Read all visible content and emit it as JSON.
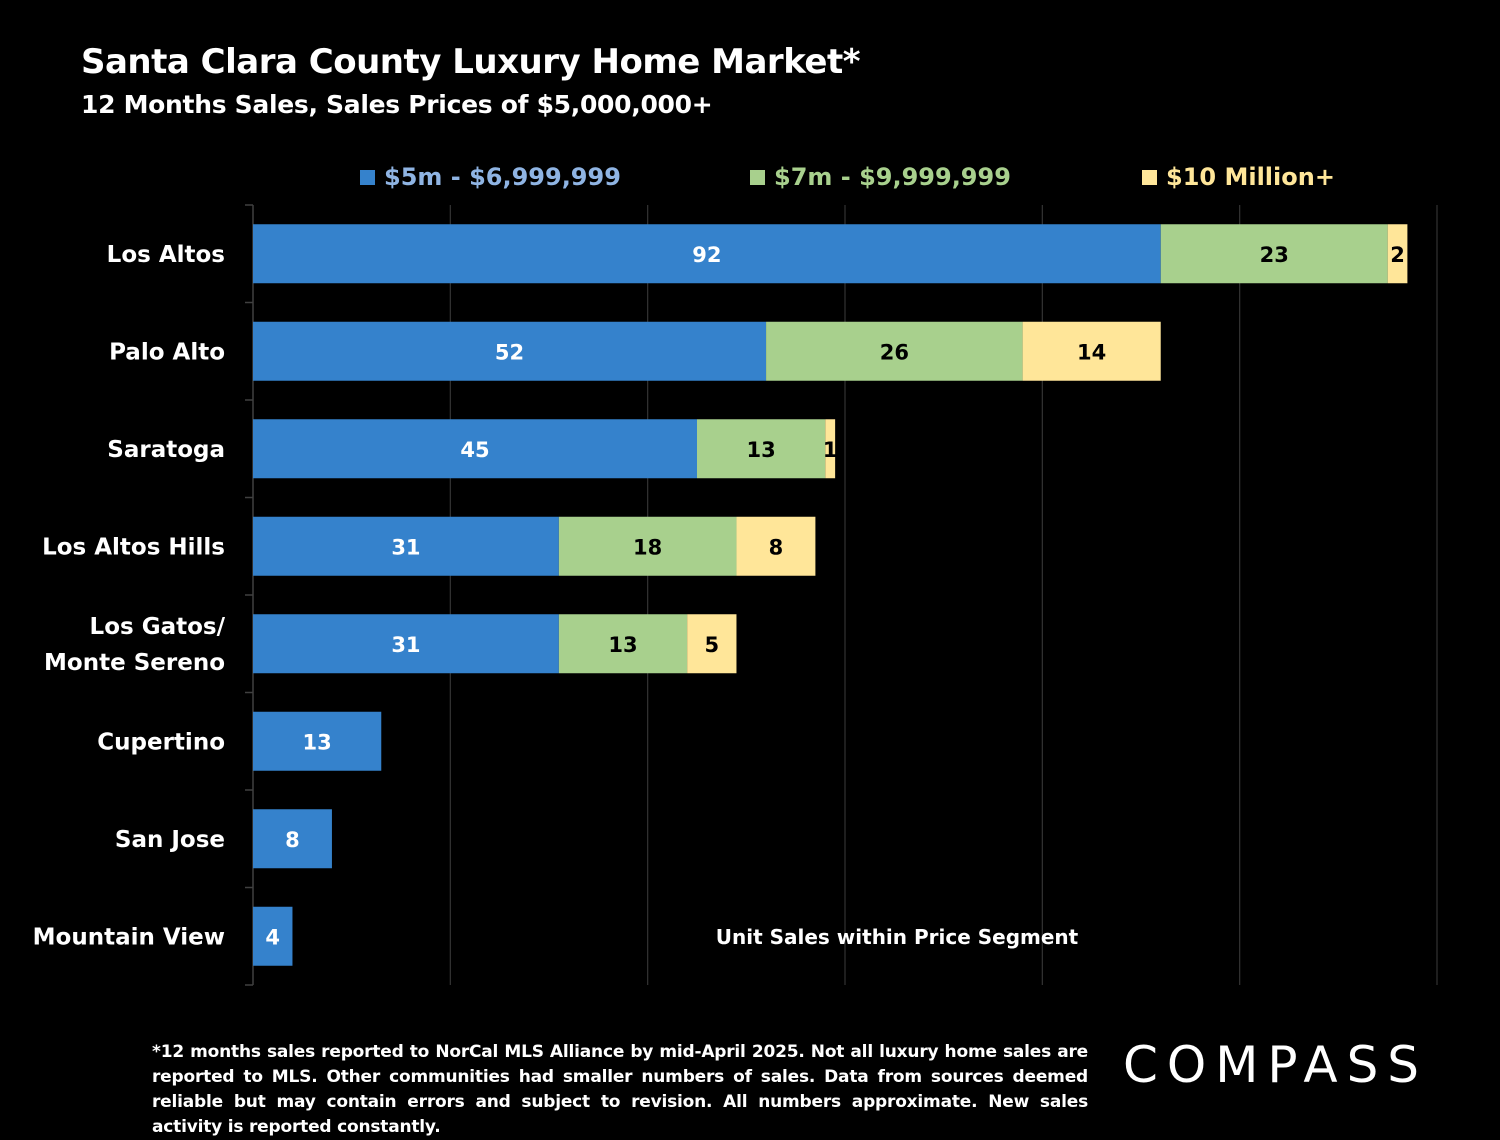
{
  "title": "Santa Clara County Luxury Home Market*",
  "subtitle": "12 Months Sales, Sales Prices of $5,000,000+",
  "footnote": "*12 months sales reported to NorCal MLS Alliance by mid-April 2025. Not all luxury home sales are reported to MLS. Other communities had smaller numbers of sales. Data from sources deemed reliable but may contain errors and subject to revision. All numbers approximate. New sales activity is reported constantly.",
  "logo": "COMPASS",
  "chart_data": {
    "type": "bar",
    "orientation": "horizontal",
    "stacked": true,
    "categories": [
      "Los Altos",
      "Palo Alto",
      "Saratoga",
      "Los Altos Hills",
      "Los Gatos/ Monte Sereno",
      "Cupertino",
      "San Jose",
      "Mountain View"
    ],
    "category_lines": [
      [
        "Los Altos"
      ],
      [
        "Palo Alto"
      ],
      [
        "Saratoga"
      ],
      [
        "Los Altos Hills"
      ],
      [
        "Los Gatos/",
        "Monte Sereno"
      ],
      [
        "Cupertino"
      ],
      [
        "San Jose"
      ],
      [
        "Mountain View"
      ]
    ],
    "series": [
      {
        "name": "$5m - $6,999,999",
        "color": "#3582CC",
        "label_color": "#FFFFFF",
        "values": [
          92,
          52,
          45,
          31,
          31,
          13,
          8,
          4
        ]
      },
      {
        "name": "$7m - $9,999,999",
        "color": "#A8D08D",
        "label_color": "#000000",
        "values": [
          23,
          26,
          13,
          18,
          13,
          0,
          0,
          0
        ]
      },
      {
        "name": "$10 Million+",
        "color": "#FFE699",
        "label_color": "#000000",
        "values": [
          2,
          14,
          1,
          8,
          5,
          0,
          0,
          0
        ]
      }
    ],
    "legend_colors": [
      "#8FB4E3",
      "#A8D08D",
      "#FFE699"
    ],
    "xlim": [
      0,
      120
    ],
    "grid": true,
    "legend": "top",
    "annotation": "Unit Sales within Price Segment"
  }
}
